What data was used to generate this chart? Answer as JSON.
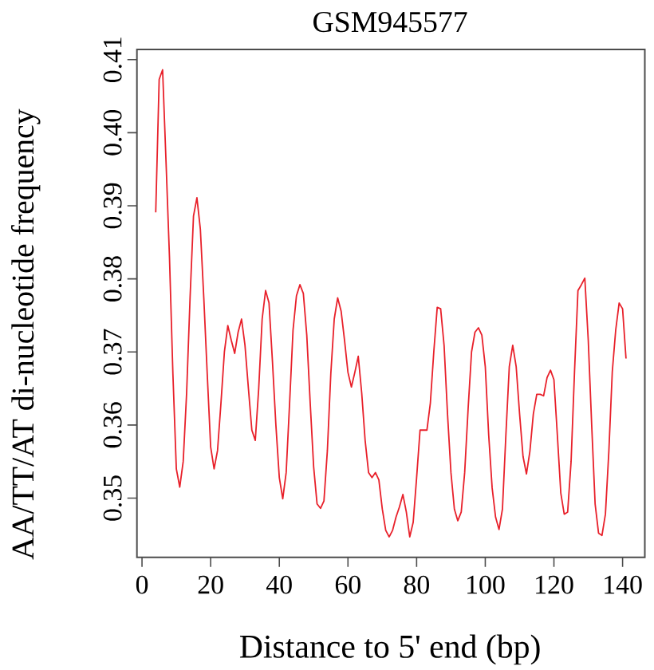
{
  "chart_data": {
    "type": "line",
    "title": "GSM945577",
    "xlabel": "Distance to 5' end (bp)",
    "ylabel": "AA/TT/AT di-nucleotide frequency",
    "xlim": [
      -1.48,
      146.48
    ],
    "ylim": [
      0.3419,
      0.4114
    ],
    "xticks": [
      0,
      20,
      40,
      60,
      80,
      100,
      120,
      140
    ],
    "yticks": [
      0.35,
      0.36,
      0.37,
      0.38,
      0.39,
      {
        "value": 0.4,
        "label": "0.40"
      },
      0.41
    ],
    "series": [
      {
        "color": "#e8202a",
        "x": [
          4,
          5,
          6,
          7,
          8,
          9,
          10,
          11,
          12,
          13,
          14,
          15,
          16,
          17,
          18,
          19,
          20,
          21,
          22,
          23,
          24,
          25,
          26,
          27,
          28,
          29,
          30,
          31,
          32,
          33,
          34,
          35,
          36,
          37,
          38,
          39,
          40,
          41,
          42,
          43,
          44,
          45,
          46,
          47,
          48,
          49,
          50,
          51,
          52,
          53,
          54,
          55,
          56,
          57,
          58,
          59,
          60,
          61,
          62,
          63,
          64,
          65,
          66,
          67,
          68,
          69,
          70,
          71,
          72,
          73,
          74,
          75,
          76,
          77,
          78,
          79,
          80,
          81,
          82,
          83,
          84,
          85,
          86,
          87,
          88,
          89,
          90,
          91,
          92,
          93,
          94,
          95,
          96,
          97,
          98,
          99,
          100,
          101,
          102,
          103,
          104,
          105,
          106,
          107,
          108,
          109,
          110,
          111,
          112,
          113,
          114,
          115,
          116,
          117,
          118,
          119,
          120,
          121,
          122,
          123,
          124,
          125,
          126,
          127,
          128,
          129,
          130,
          131,
          132,
          133,
          134,
          135,
          136,
          137,
          138,
          139,
          140,
          141
        ],
        "values": [
          0.3891,
          0.4073,
          0.4086,
          0.396,
          0.383,
          0.367,
          0.354,
          0.3515,
          0.355,
          0.3644,
          0.3774,
          0.3886,
          0.3911,
          0.3868,
          0.3774,
          0.367,
          0.357,
          0.354,
          0.3565,
          0.363,
          0.37,
          0.3736,
          0.3716,
          0.3698,
          0.3727,
          0.3745,
          0.3709,
          0.365,
          0.3593,
          0.3579,
          0.365,
          0.3745,
          0.3784,
          0.3767,
          0.3687,
          0.36,
          0.3528,
          0.3499,
          0.3535,
          0.363,
          0.373,
          0.3777,
          0.3792,
          0.378,
          0.3723,
          0.363,
          0.3543,
          0.3492,
          0.3486,
          0.3496,
          0.3565,
          0.367,
          0.3745,
          0.3774,
          0.3756,
          0.3716,
          0.3672,
          0.3652,
          0.3672,
          0.3694,
          0.3644,
          0.3579,
          0.3535,
          0.3528,
          0.3535,
          0.3525,
          0.3485,
          0.3456,
          0.3447,
          0.3456,
          0.3474,
          0.3488,
          0.3505,
          0.3481,
          0.3447,
          0.3467,
          0.3528,
          0.3593,
          0.3593,
          0.3593,
          0.363,
          0.37,
          0.3761,
          0.3759,
          0.3709,
          0.3615,
          0.3535,
          0.3485,
          0.3469,
          0.3481,
          0.3535,
          0.3622,
          0.37,
          0.3727,
          0.3733,
          0.3723,
          0.368,
          0.3586,
          0.3514,
          0.3474,
          0.3457,
          0.3485,
          0.3586,
          0.368,
          0.3709,
          0.368,
          0.3615,
          0.3557,
          0.3533,
          0.3564,
          0.3615,
          0.3642,
          0.3642,
          0.364,
          0.3665,
          0.3675,
          0.3662,
          0.3586,
          0.3507,
          0.3478,
          0.3481,
          0.355,
          0.3673,
          0.3784,
          0.3792,
          0.3801,
          0.3716,
          0.36,
          0.3492,
          0.3452,
          0.3449,
          0.3478,
          0.3564,
          0.3673,
          0.373,
          0.3767,
          0.3759,
          0.3691
        ]
      }
    ]
  }
}
